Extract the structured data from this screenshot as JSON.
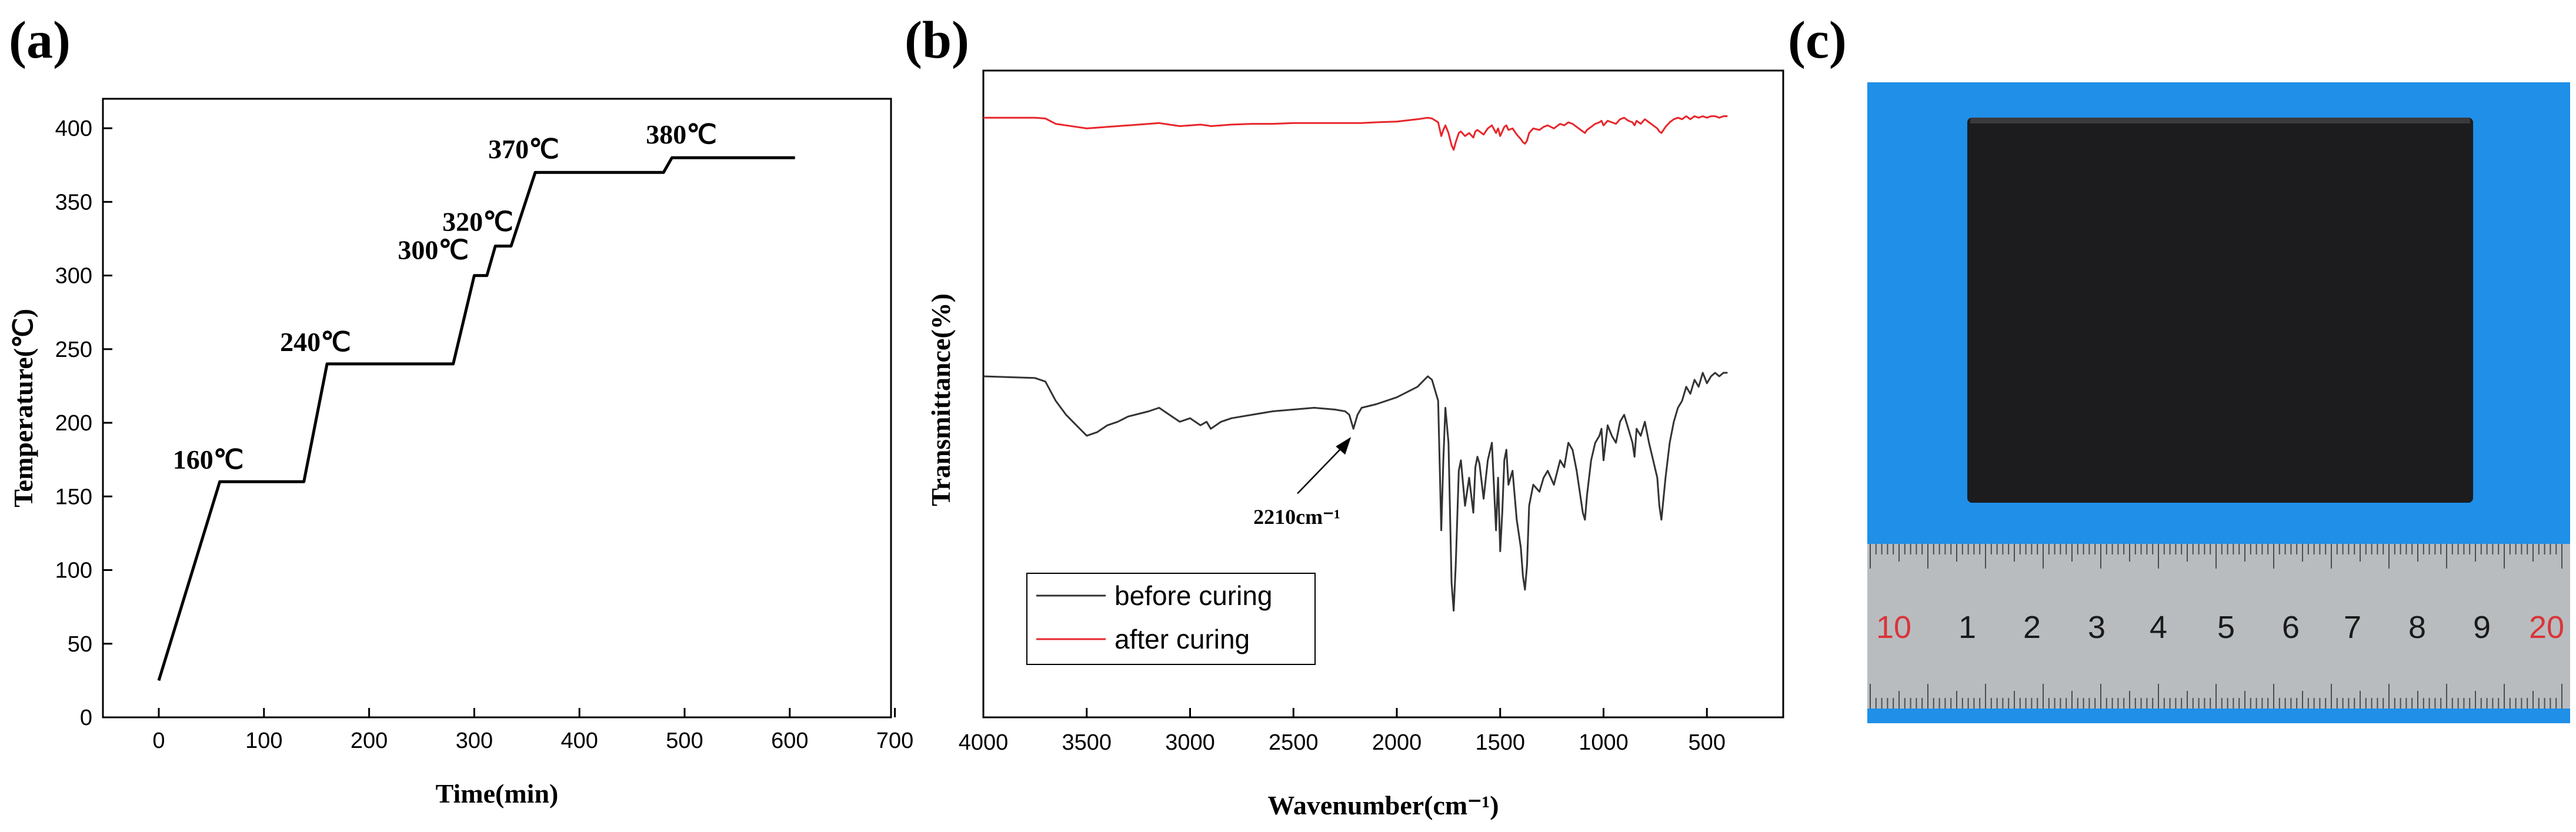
{
  "panels": {
    "a": "(a)",
    "b": "(b)",
    "c": "(c)"
  },
  "chart_data": [
    {
      "id": "a",
      "type": "line",
      "xlabel": "Time(min)",
      "ylabel": "Temperature(℃)",
      "xlim": [
        -50,
        700
      ],
      "ylim": [
        0,
        420
      ],
      "xticks": [
        0,
        100,
        200,
        300,
        400,
        500,
        600,
        700
      ],
      "yticks": [
        0,
        50,
        100,
        150,
        200,
        250,
        300,
        350,
        400
      ],
      "x": [
        0,
        58,
        138,
        160,
        280,
        300,
        312,
        320,
        335,
        358,
        480,
        488,
        605
      ],
      "y": [
        25,
        160,
        160,
        240,
        240,
        300,
        300,
        320,
        320,
        370,
        370,
        380,
        380
      ],
      "color": "#000000",
      "annotations": [
        {
          "text": "160℃",
          "x": 58,
          "y": 160
        },
        {
          "text": "240℃",
          "x": 160,
          "y": 240
        },
        {
          "text": "300℃",
          "x": 300,
          "y": 300
        },
        {
          "text": "320℃",
          "x": 320,
          "y": 320
        },
        {
          "text": "370℃",
          "x": 358,
          "y": 370
        },
        {
          "text": "380℃",
          "x": 480,
          "y": 380
        }
      ]
    },
    {
      "id": "b",
      "type": "line",
      "xlabel": "Wavenumber(cm⁻¹)",
      "ylabel": "Transmittance(%)",
      "xlim": [
        4000,
        400
      ],
      "xticks": [
        4000,
        3500,
        3000,
        2500,
        2000,
        1500,
        1000,
        500
      ],
      "ylim": [
        0,
        100
      ],
      "legend_position": "bottom-left",
      "annotation": {
        "text": "2210cm⁻¹",
        "x": 2210
      },
      "series": [
        {
          "name": "before curing",
          "color": "#333333",
          "x": [
            4000,
            3750,
            3700,
            3650,
            3600,
            3550,
            3500,
            3450,
            3400,
            3350,
            3300,
            3200,
            3150,
            3100,
            3050,
            3000,
            2950,
            2920,
            2900,
            2850,
            2800,
            2700,
            2600,
            2500,
            2400,
            2300,
            2250,
            2230,
            2210,
            2190,
            2170,
            2100,
            2000,
            1900,
            1850,
            1830,
            1800,
            1785,
            1775,
            1765,
            1750,
            1735,
            1725,
            1715,
            1700,
            1690,
            1670,
            1650,
            1630,
            1620,
            1610,
            1600,
            1580,
            1560,
            1540,
            1520,
            1510,
            1500,
            1490,
            1480,
            1470,
            1460,
            1440,
            1420,
            1400,
            1390,
            1380,
            1370,
            1360,
            1340,
            1310,
            1290,
            1270,
            1240,
            1210,
            1190,
            1170,
            1150,
            1130,
            1110,
            1100,
            1090,
            1080,
            1060,
            1040,
            1020,
            1010,
            1000,
            980,
            960,
            940,
            920,
            900,
            880,
            860,
            850,
            840,
            820,
            800,
            780,
            760,
            740,
            730,
            720,
            700,
            680,
            660,
            640,
            620,
            600,
            580,
            560,
            540,
            520,
            500,
            480,
            460,
            440,
            420,
            400
          ],
          "y": [
            79,
            78.5,
            77.5,
            72,
            68,
            65,
            62,
            63,
            65,
            66,
            67.5,
            69,
            70,
            68,
            66,
            67,
            65,
            66,
            64,
            66,
            67,
            68,
            69,
            69.5,
            70,
            69.5,
            69,
            68,
            64,
            68,
            70,
            71,
            73,
            76,
            79,
            78,
            72,
            35,
            55,
            70,
            60,
            20,
            12,
            25,
            52,
            55,
            42,
            50,
            40,
            53,
            56,
            54,
            44,
            55,
            60,
            35,
            50,
            29,
            40,
            55,
            58,
            48,
            52,
            38,
            30,
            22,
            18,
            25,
            42,
            48,
            46,
            50,
            52,
            48,
            55,
            53,
            60,
            58,
            52,
            44,
            40,
            38,
            45,
            55,
            60,
            62,
            64,
            55,
            65,
            62,
            60,
            66,
            68,
            64,
            60,
            56,
            64,
            62,
            66,
            60,
            55,
            50,
            42,
            38,
            50,
            60,
            66,
            70,
            72,
            76,
            74,
            78,
            76,
            80,
            77,
            79,
            80,
            79,
            80,
            80
          ],
          "annotation_y": 64
        },
        {
          "name": "after curing",
          "color": "#e8262b",
          "x": [
            4000,
            3750,
            3700,
            3650,
            3600,
            3550,
            3500,
            3450,
            3400,
            3350,
            3300,
            3200,
            3150,
            3100,
            3050,
            3000,
            2950,
            2920,
            2900,
            2850,
            2800,
            2700,
            2600,
            2500,
            2400,
            2300,
            2250,
            2230,
            2210,
            2190,
            2170,
            2100,
            2000,
            1900,
            1850,
            1830,
            1800,
            1785,
            1775,
            1765,
            1750,
            1735,
            1725,
            1715,
            1700,
            1690,
            1670,
            1650,
            1630,
            1620,
            1610,
            1600,
            1580,
            1560,
            1540,
            1520,
            1510,
            1500,
            1490,
            1480,
            1470,
            1460,
            1440,
            1420,
            1400,
            1390,
            1380,
            1370,
            1360,
            1340,
            1310,
            1290,
            1270,
            1240,
            1210,
            1190,
            1170,
            1150,
            1130,
            1110,
            1100,
            1090,
            1080,
            1060,
            1040,
            1020,
            1010,
            1000,
            980,
            960,
            940,
            920,
            900,
            880,
            860,
            850,
            840,
            820,
            800,
            780,
            760,
            740,
            730,
            720,
            700,
            680,
            660,
            640,
            620,
            600,
            580,
            560,
            540,
            520,
            500,
            480,
            460,
            440,
            420,
            400
          ],
          "y": [
            98,
            98,
            97.5,
            94,
            93,
            92,
            91,
            91.5,
            92,
            92.5,
            93,
            94,
            94.5,
            93.5,
            92.5,
            93,
            93.5,
            93,
            92.5,
            93,
            93.5,
            94,
            94,
            94.5,
            94.5,
            94.5,
            94.5,
            94.5,
            94.5,
            94.5,
            94.5,
            95,
            95.5,
            97,
            98,
            97.5,
            95,
            86,
            90,
            93,
            88,
            80,
            77,
            82,
            88,
            89,
            86,
            88,
            85,
            89,
            90,
            89,
            87,
            91,
            93,
            88,
            91,
            86,
            89,
            92,
            93,
            90,
            91,
            87,
            84,
            82,
            81,
            83,
            88,
            91,
            90,
            92,
            93,
            91,
            94,
            93,
            95,
            94,
            92,
            90,
            89,
            88,
            90,
            92,
            94,
            95,
            96,
            93,
            96,
            95,
            94,
            97,
            98,
            96,
            95,
            93,
            96,
            94,
            97,
            95,
            93,
            91,
            89,
            88,
            92,
            95,
            97,
            98,
            97,
            99,
            97,
            99,
            98,
            99,
            98,
            99,
            99,
            98,
            99,
            99
          ]
        }
      ]
    }
  ],
  "photo": {
    "background_color": "#1f8fe8",
    "plate_color": "#1c1c1e",
    "ruler_color": "#b9bcbf",
    "ruler_numbers": [
      {
        "text": "10",
        "color": "#d9343a"
      },
      {
        "text": "1",
        "color": "#1a1a1a"
      },
      {
        "text": "2",
        "color": "#1a1a1a"
      },
      {
        "text": "3",
        "color": "#1a1a1a"
      },
      {
        "text": "4",
        "color": "#1a1a1a"
      },
      {
        "text": "5",
        "color": "#1a1a1a"
      },
      {
        "text": "6",
        "color": "#1a1a1a"
      },
      {
        "text": "7",
        "color": "#1a1a1a"
      },
      {
        "text": "8",
        "color": "#1a1a1a"
      },
      {
        "text": "9",
        "color": "#1a1a1a"
      },
      {
        "text": "20",
        "color": "#d9343a"
      }
    ]
  }
}
